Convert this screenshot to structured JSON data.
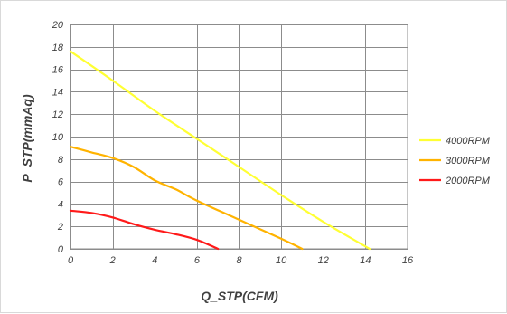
{
  "chart_data": {
    "type": "line",
    "title": "",
    "xlabel": "Q_STP(CFM)",
    "ylabel": "P_STP(mmAq)",
    "xlim": [
      0,
      16
    ],
    "ylim": [
      0,
      20
    ],
    "x_ticks": [
      0,
      2,
      4,
      6,
      8,
      10,
      12,
      14,
      16
    ],
    "y_ticks": [
      0,
      2,
      4,
      6,
      8,
      10,
      12,
      14,
      16,
      18,
      20
    ],
    "grid": true,
    "legend_position": "right",
    "series": [
      {
        "name": "4000RPM",
        "color": "#ffff33",
        "points": [
          [
            0,
            17.6
          ],
          [
            2,
            15.0
          ],
          [
            4,
            12.3
          ],
          [
            6,
            9.8
          ],
          [
            8,
            7.3
          ],
          [
            10,
            4.8
          ],
          [
            12,
            2.4
          ],
          [
            14.2,
            0
          ]
        ]
      },
      {
        "name": "3000RPM",
        "color": "#ffb300",
        "points": [
          [
            0,
            9.1
          ],
          [
            1,
            8.6
          ],
          [
            2,
            8.1
          ],
          [
            3,
            7.3
          ],
          [
            4,
            6.1
          ],
          [
            5,
            5.3
          ],
          [
            6,
            4.3
          ],
          [
            8,
            2.6
          ],
          [
            10,
            0.9
          ],
          [
            11,
            0
          ]
        ]
      },
      {
        "name": "2000RPM",
        "color": "#ff1a1a",
        "points": [
          [
            0,
            3.4
          ],
          [
            1,
            3.2
          ],
          [
            2,
            2.8
          ],
          [
            3,
            2.2
          ],
          [
            4,
            1.7
          ],
          [
            5,
            1.3
          ],
          [
            6,
            0.8
          ],
          [
            7,
            0
          ]
        ]
      }
    ]
  }
}
